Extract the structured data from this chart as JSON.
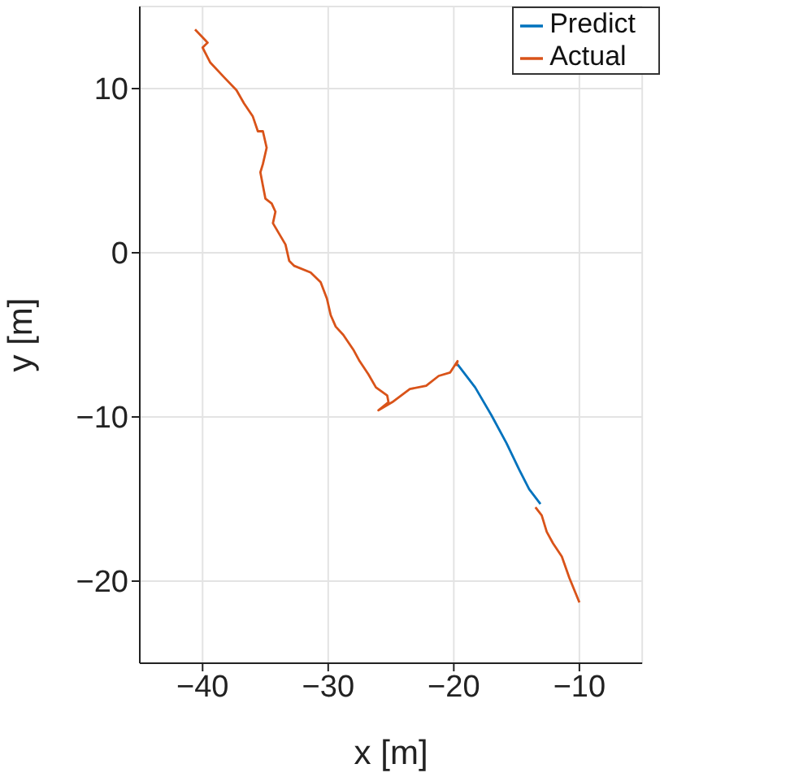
{
  "chart_data": {
    "type": "line",
    "xlabel": "x [m]",
    "ylabel": "y [m]",
    "xlim": [
      -45,
      -5
    ],
    "ylim": [
      -25,
      15
    ],
    "xticks": [
      -40,
      -30,
      -20,
      -10
    ],
    "yticks": [
      -20,
      -10,
      0,
      10
    ],
    "grid": true,
    "legend": "top right",
    "line_style": "solid",
    "marker": "none",
    "series": [
      {
        "name": "Predict",
        "color": "#0072bd",
        "x": [
          -19.7,
          -18.3,
          -17.0,
          -15.8,
          -14.8,
          -14.0,
          -13.1
        ],
        "values": [
          -6.8,
          -8.2,
          -9.9,
          -11.6,
          -13.2,
          -14.4,
          -15.3
        ]
      },
      {
        "name": "Actual",
        "color": "#d95319",
        "x": [
          -40.6,
          -39.6,
          -40.0,
          -39.8,
          -39.4,
          -38.3,
          -37.3,
          -36.7,
          -36.0,
          -35.6,
          -35.2,
          -34.9,
          -35.2,
          -35.4,
          -35.2,
          -35.0,
          -34.5,
          -34.2,
          -34.4,
          -33.4,
          -33.1,
          -32.7,
          -31.4,
          -30.6,
          -30.1,
          -29.8,
          -29.4,
          -28.8,
          -28.0,
          -27.5,
          -26.8,
          -26.2,
          -25.3,
          -25.2,
          -26.0,
          -24.9,
          -23.5,
          -22.2,
          -21.2,
          -20.3,
          -19.7,
          -19.8,
          -16.5,
          -13.5,
          -13.0,
          -12.6,
          -12.1,
          -11.4,
          -10.8,
          -10.0
        ],
        "values": [
          13.6,
          12.8,
          12.5,
          12.2,
          11.6,
          10.7,
          9.9,
          9.1,
          8.3,
          7.4,
          7.4,
          6.4,
          5.4,
          4.9,
          4.1,
          3.3,
          3.0,
          2.5,
          1.8,
          0.5,
          -0.5,
          -0.8,
          -1.2,
          -1.8,
          -2.8,
          -3.8,
          -4.5,
          -5.0,
          -5.9,
          -6.6,
          -7.4,
          -8.2,
          -8.7,
          -9.1,
          -9.6,
          -9.1,
          -8.3,
          -8.1,
          -7.5,
          -7.3,
          -6.6,
          -6.9,
          null,
          -15.5,
          -16.0,
          -17.0,
          -17.7,
          -18.5,
          -19.8,
          -21.3
        ]
      }
    ]
  }
}
